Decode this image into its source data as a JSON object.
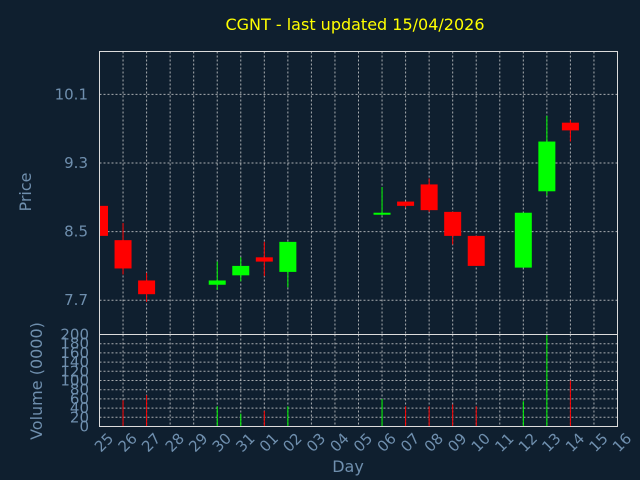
{
  "chart_data": {
    "type": "candlestick",
    "title": "CGNT - last updated 15/04/2026",
    "price_panel": {
      "ylabel": "Price",
      "ylim": [
        7.3,
        10.6
      ],
      "yticks": [
        7.7,
        8.5,
        9.3,
        10.1
      ]
    },
    "volume_panel": {
      "ylabel": "Volume (0000)",
      "ylim": [
        0,
        200
      ],
      "yticks": [
        0,
        20,
        40,
        60,
        80,
        100,
        120,
        140,
        160,
        180,
        200
      ]
    },
    "xlabel": "Day",
    "x_ticks": [
      "25",
      "26",
      "27",
      "28",
      "29",
      "30",
      "31",
      "01",
      "02",
      "03",
      "04",
      "05",
      "06",
      "07",
      "08",
      "09",
      "10",
      "11",
      "12",
      "13",
      "14",
      "15",
      "16"
    ],
    "candles": [
      {
        "i": 0,
        "open": 8.8,
        "high": 8.8,
        "low": 8.43,
        "close": 8.45
      },
      {
        "i": 1,
        "open": 8.4,
        "high": 8.6,
        "low": 8.0,
        "close": 8.07
      },
      {
        "i": 2,
        "open": 7.93,
        "high": 8.02,
        "low": 7.68,
        "close": 7.77
      },
      {
        "i": 5,
        "open": 7.88,
        "high": 8.15,
        "low": 7.82,
        "close": 7.93
      },
      {
        "i": 6,
        "open": 7.99,
        "high": 8.2,
        "low": 7.92,
        "close": 8.1
      },
      {
        "i": 7,
        "open": 8.2,
        "high": 8.38,
        "low": 7.98,
        "close": 8.15
      },
      {
        "i": 8,
        "open": 8.03,
        "high": 8.38,
        "low": 7.85,
        "close": 8.38
      },
      {
        "i": 12,
        "open": 8.7,
        "high": 9.02,
        "low": 8.69,
        "close": 8.72
      },
      {
        "i": 13,
        "open": 8.85,
        "high": 8.85,
        "low": 8.78,
        "close": 8.8
      },
      {
        "i": 14,
        "open": 9.05,
        "high": 9.12,
        "low": 8.73,
        "close": 8.75
      },
      {
        "i": 15,
        "open": 8.73,
        "high": 8.73,
        "low": 8.35,
        "close": 8.45
      },
      {
        "i": 16,
        "open": 8.45,
        "high": 8.45,
        "low": 8.1,
        "close": 8.1
      },
      {
        "i": 18,
        "open": 8.08,
        "high": 8.72,
        "low": 8.08,
        "close": 8.72
      },
      {
        "i": 19,
        "open": 8.97,
        "high": 9.85,
        "low": 8.92,
        "close": 9.55
      },
      {
        "i": 20,
        "open": 9.77,
        "high": 9.8,
        "low": 9.55,
        "close": 9.68
      }
    ],
    "volumes": [
      {
        "i": 0,
        "value": 0,
        "up": false
      },
      {
        "i": 1,
        "value": 57,
        "up": false
      },
      {
        "i": 2,
        "value": 68,
        "up": false
      },
      {
        "i": 5,
        "value": 44,
        "up": true
      },
      {
        "i": 6,
        "value": 28,
        "up": true
      },
      {
        "i": 7,
        "value": 34,
        "up": false
      },
      {
        "i": 8,
        "value": 44,
        "up": true
      },
      {
        "i": 12,
        "value": 60,
        "up": true
      },
      {
        "i": 13,
        "value": 44,
        "up": false
      },
      {
        "i": 14,
        "value": 44,
        "up": false
      },
      {
        "i": 15,
        "value": 48,
        "up": false
      },
      {
        "i": 16,
        "value": 44,
        "up": false
      },
      {
        "i": 18,
        "value": 55,
        "up": true
      },
      {
        "i": 19,
        "value": 200,
        "up": true
      },
      {
        "i": 20,
        "value": 100,
        "up": false
      }
    ],
    "colors": {
      "background": "#0f1f2f",
      "up": "#00ff00",
      "down": "#ff0000",
      "grid": "#dcdcdc",
      "title": "#ffff00",
      "axis_text": "#6f8fae"
    },
    "grid": true
  }
}
